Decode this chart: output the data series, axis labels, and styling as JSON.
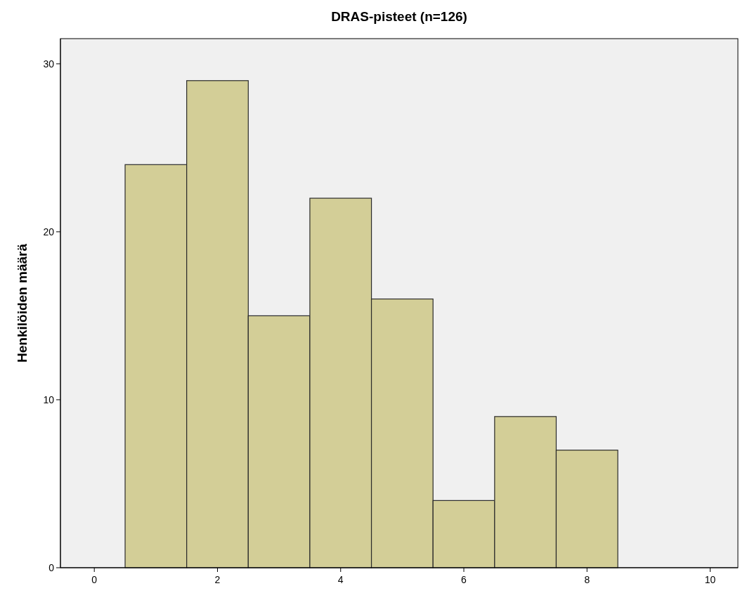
{
  "chart_data": {
    "type": "histogram",
    "title": "DRAS-pisteet (n=126)",
    "ylabel": "Henkilöiden määrä",
    "bins": [
      0.5,
      1.5,
      2.5,
      3.5,
      4.5,
      5.5,
      6.5,
      7.5,
      8.5
    ],
    "values": [
      24,
      29,
      15,
      22,
      16,
      4,
      9,
      7
    ],
    "color": "#d3ce97",
    "xlim": [
      -0.55,
      10.45
    ],
    "xticks": [
      0,
      2,
      4,
      6,
      8,
      10
    ],
    "ylim": [
      0,
      31.5
    ],
    "yticks": [
      0,
      10,
      20,
      30
    ],
    "grid": false
  }
}
